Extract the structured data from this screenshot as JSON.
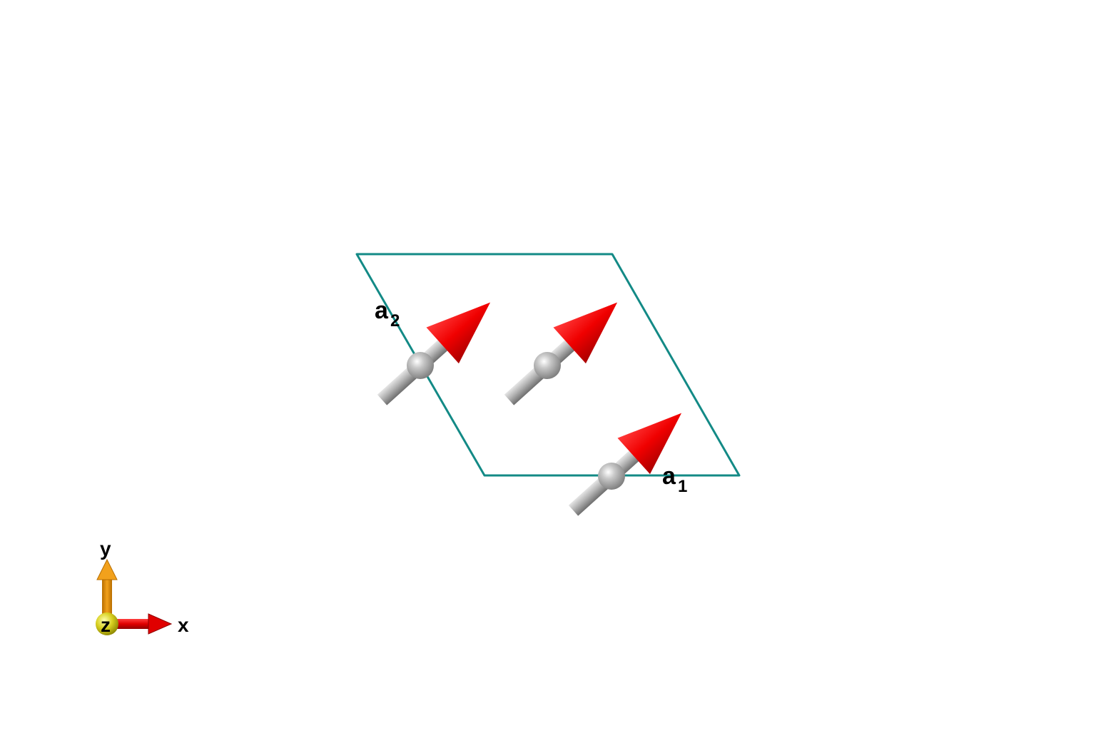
{
  "diagram": {
    "cell_color": "#138a86",
    "arrow_head_color": "#f00000",
    "atom_color": "#a8a8a8",
    "lattice_vectors": [
      {
        "name": "a1",
        "letter": "a",
        "subscript": "1"
      },
      {
        "name": "a2",
        "letter": "a",
        "subscript": "2"
      }
    ],
    "spins": [
      {
        "id": "spin-1"
      },
      {
        "id": "spin-2"
      },
      {
        "id": "spin-3"
      }
    ]
  },
  "axes": {
    "x_label": "x",
    "y_label": "y",
    "z_label": "z",
    "x_color": "#e00000",
    "y_color": "#e0900a",
    "z_color": "#d8d020"
  }
}
